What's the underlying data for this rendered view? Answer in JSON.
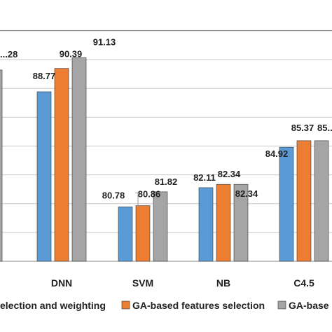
{
  "chart_data": {
    "type": "bar",
    "categories": [
      "",
      "DNN",
      "SVM",
      "NB",
      "C4.5",
      ""
    ],
    "series": [
      {
        "name": "...election and weighting",
        "values": [
          null,
          88.77,
          80.78,
          82.11,
          84.92,
          null
        ],
        "labels": [
          "",
          "88.77",
          "80.78",
          "82.11",
          "84.92",
          ""
        ]
      },
      {
        "name": "GA-based features selection",
        "values": [
          null,
          90.39,
          80.86,
          82.34,
          85.37,
          null
        ],
        "labels": [
          "",
          "90.39",
          "80.86",
          "82.34",
          "85.37",
          ""
        ]
      },
      {
        "name": "GA-base...",
        "values": [
          90.28,
          91.13,
          81.82,
          82.34,
          85.37,
          null
        ],
        "labels": [
          "...28",
          "91.13",
          "81.82",
          "82.34",
          "85...",
          ""
        ]
      }
    ],
    "ylim": [
      77,
      93
    ],
    "grid": true,
    "legend_position": "bottom"
  },
  "colors": {
    "series": [
      "#5b9bd5",
      "#ed7d31",
      "#a5a5a5"
    ],
    "grid": "#c8c8c8",
    "axis": "#888888"
  }
}
